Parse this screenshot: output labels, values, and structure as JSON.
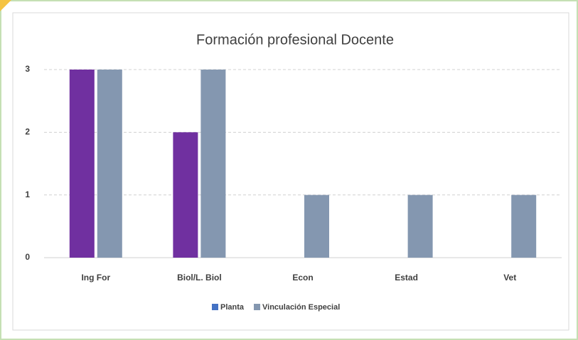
{
  "chart_data": {
    "type": "bar",
    "title": "Formación profesional Docente",
    "categories": [
      "Ing For",
      "Biol/L. Biol",
      "Econ",
      "Estad",
      "Vet"
    ],
    "series": [
      {
        "name": "Planta",
        "color": "#7030a0",
        "legend_color": "#4472c4",
        "values": [
          3,
          2,
          0,
          0,
          0
        ]
      },
      {
        "name": "Vinculación Especial",
        "color": "#8497b0",
        "legend_color": "#8497b0",
        "values": [
          3,
          3,
          1,
          1,
          1
        ]
      }
    ],
    "ylim": [
      0,
      3
    ],
    "yticks": [
      0,
      1,
      2,
      3
    ],
    "grid": true,
    "legend": "bottom"
  }
}
